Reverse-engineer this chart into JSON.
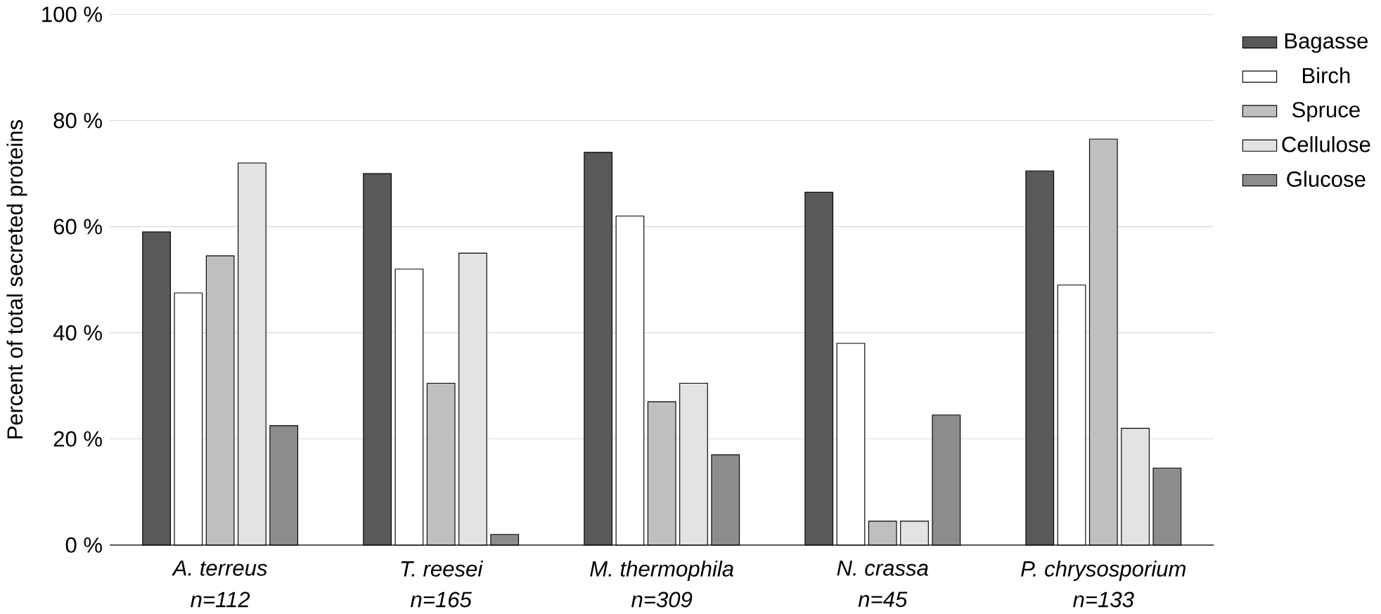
{
  "chart_data": {
    "type": "bar",
    "ylabel": "Percent of total secreted proteins",
    "categories": [
      "A. terreus",
      "T. reesei",
      "M. thermophila",
      "N. crassa",
      "P. chrysosporium"
    ],
    "annotations": [
      "n=112",
      "n=165",
      "n=309",
      "n=45",
      "n=133"
    ],
    "series": [
      {
        "name": "Bagasse",
        "color": "#595959",
        "values": [
          59,
          70,
          74,
          66.5,
          70.5
        ]
      },
      {
        "name": "Birch",
        "color": "#ffffff",
        "values": [
          47.5,
          52,
          62,
          38,
          49
        ]
      },
      {
        "name": "Spruce",
        "color": "#bfbfbf",
        "values": [
          54.5,
          30.5,
          27,
          4.5,
          76.5
        ]
      },
      {
        "name": "Cellulose",
        "color": "#e3e3e3",
        "values": [
          72,
          55,
          30.5,
          4.5,
          22
        ]
      },
      {
        "name": "Glucose",
        "color": "#8c8c8c",
        "values": [
          22.5,
          2,
          17,
          24.5,
          14.5
        ]
      }
    ],
    "ylim": [
      0,
      100
    ],
    "yticks": [
      {
        "value": 0,
        "label": "0 %"
      },
      {
        "value": 20,
        "label": "20 %"
      },
      {
        "value": 40,
        "label": "40 %"
      },
      {
        "value": 60,
        "label": "60 %"
      },
      {
        "value": 80,
        "label": "80 %"
      },
      {
        "value": 100,
        "label": "100 %"
      }
    ],
    "grid": "y",
    "legend": "right"
  }
}
